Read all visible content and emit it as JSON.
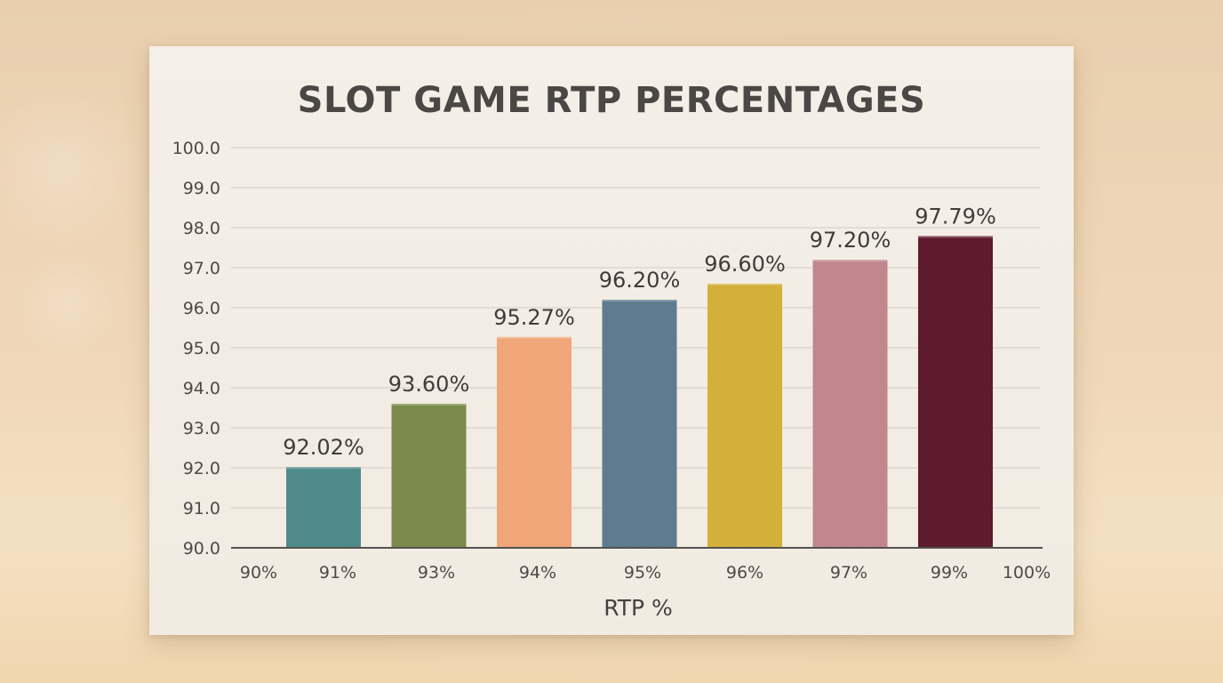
{
  "chart_data": {
    "type": "bar",
    "title": "SLOT GAME RTP PERCENTAGES",
    "xlabel": "RTP %",
    "ylabel": "",
    "ylim": [
      90.0,
      100.0
    ],
    "yticks": [
      "90.0",
      "91.0",
      "92.0",
      "93.0",
      "94.0",
      "95.0",
      "96.0",
      "97.0",
      "98.0",
      "99.0",
      "100.0"
    ],
    "xticks": [
      "90%",
      "91%",
      "93%",
      "94%",
      "95%",
      "96%",
      "97%",
      "99%",
      "100%"
    ],
    "categories": [
      "91%",
      "93%",
      "94%",
      "95%",
      "96%",
      "97%",
      "99%"
    ],
    "values": [
      92.02,
      93.6,
      95.27,
      96.2,
      96.6,
      97.2,
      97.79
    ],
    "data_labels": [
      "92.02%",
      "93.60%",
      "95.27%",
      "96.20%",
      "96.60%",
      "97.20%",
      "97.79%"
    ],
    "colors": [
      "#4f8a8b",
      "#7b8a4c",
      "#f0a679",
      "#5e7b90",
      "#d4b03a",
      "#c1878c",
      "#5e1a2e"
    ],
    "grid": true,
    "legend": "none"
  }
}
